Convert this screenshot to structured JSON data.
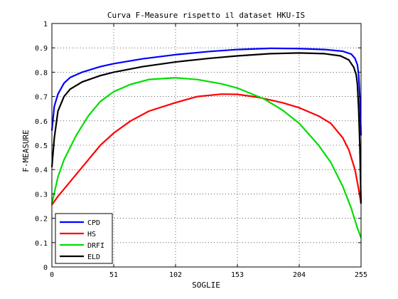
{
  "chart_data": {
    "type": "line",
    "title": "Curva F-Measure rispetto il dataset HKU-IS",
    "xlabel": "SOGLIE",
    "ylabel": "F-MEASURE",
    "xlim": [
      0,
      255
    ],
    "ylim": [
      0,
      1
    ],
    "xticks": [
      0,
      51,
      102,
      153,
      204,
      255
    ],
    "yticks": [
      0,
      0.1,
      0.2,
      0.3,
      0.4,
      0.5,
      0.6,
      0.7,
      0.8,
      0.9,
      1
    ],
    "ytick_labels": [
      "0",
      "0.1",
      "0.2",
      "0.3",
      "0.4",
      "0.5",
      "0.6",
      "0.7",
      "0.8",
      "0.9",
      "1"
    ],
    "grid": true,
    "legend_position": "bottom-left",
    "series": [
      {
        "name": "CPD",
        "color": "#0000ff",
        "points": [
          [
            0,
            0.56
          ],
          [
            2,
            0.66
          ],
          [
            5,
            0.71
          ],
          [
            10,
            0.755
          ],
          [
            15,
            0.778
          ],
          [
            25,
            0.8
          ],
          [
            40,
            0.823
          ],
          [
            51,
            0.835
          ],
          [
            75,
            0.855
          ],
          [
            102,
            0.872
          ],
          [
            130,
            0.885
          ],
          [
            153,
            0.893
          ],
          [
            180,
            0.898
          ],
          [
            204,
            0.897
          ],
          [
            225,
            0.893
          ],
          [
            240,
            0.886
          ],
          [
            247,
            0.874
          ],
          [
            250,
            0.857
          ],
          [
            252,
            0.83
          ],
          [
            253,
            0.79
          ],
          [
            254,
            0.7
          ],
          [
            255,
            0.54
          ]
        ]
      },
      {
        "name": "HS",
        "color": "#ff0000",
        "points": [
          [
            0,
            0.255
          ],
          [
            5,
            0.29
          ],
          [
            10,
            0.32
          ],
          [
            20,
            0.38
          ],
          [
            30,
            0.44
          ],
          [
            40,
            0.5
          ],
          [
            51,
            0.55
          ],
          [
            65,
            0.6
          ],
          [
            80,
            0.64
          ],
          [
            102,
            0.675
          ],
          [
            120,
            0.7
          ],
          [
            140,
            0.71
          ],
          [
            153,
            0.709
          ],
          [
            170,
            0.697
          ],
          [
            190,
            0.675
          ],
          [
            204,
            0.654
          ],
          [
            220,
            0.62
          ],
          [
            230,
            0.59
          ],
          [
            240,
            0.53
          ],
          [
            245,
            0.48
          ],
          [
            250,
            0.4
          ],
          [
            253,
            0.32
          ],
          [
            255,
            0.26
          ]
        ]
      },
      {
        "name": "DRFI",
        "color": "#00dd00",
        "points": [
          [
            0,
            0.26
          ],
          [
            5,
            0.37
          ],
          [
            10,
            0.44
          ],
          [
            20,
            0.54
          ],
          [
            30,
            0.62
          ],
          [
            40,
            0.68
          ],
          [
            51,
            0.72
          ],
          [
            65,
            0.75
          ],
          [
            80,
            0.77
          ],
          [
            102,
            0.777
          ],
          [
            120,
            0.77
          ],
          [
            140,
            0.752
          ],
          [
            153,
            0.735
          ],
          [
            175,
            0.69
          ],
          [
            190,
            0.645
          ],
          [
            204,
            0.59
          ],
          [
            220,
            0.5
          ],
          [
            230,
            0.43
          ],
          [
            240,
            0.33
          ],
          [
            247,
            0.24
          ],
          [
            252,
            0.16
          ],
          [
            255,
            0.12
          ]
        ]
      },
      {
        "name": "ELD",
        "color": "#000000",
        "points": [
          [
            0,
            0.41
          ],
          [
            2,
            0.53
          ],
          [
            5,
            0.64
          ],
          [
            10,
            0.7
          ],
          [
            15,
            0.73
          ],
          [
            25,
            0.76
          ],
          [
            40,
            0.786
          ],
          [
            51,
            0.8
          ],
          [
            75,
            0.823
          ],
          [
            102,
            0.842
          ],
          [
            130,
            0.857
          ],
          [
            153,
            0.867
          ],
          [
            180,
            0.876
          ],
          [
            204,
            0.879
          ],
          [
            225,
            0.876
          ],
          [
            238,
            0.867
          ],
          [
            245,
            0.85
          ],
          [
            249,
            0.82
          ],
          [
            251,
            0.79
          ],
          [
            252,
            0.75
          ],
          [
            253,
            0.65
          ],
          [
            254,
            0.5
          ],
          [
            255,
            0.26
          ]
        ]
      }
    ]
  }
}
